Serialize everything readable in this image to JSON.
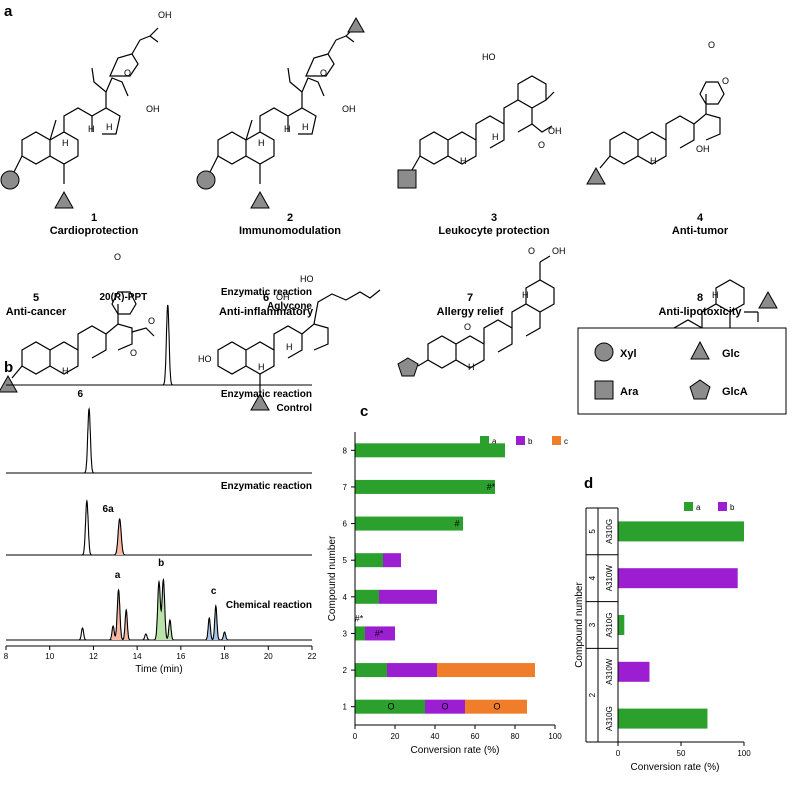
{
  "panels": {
    "a": "a",
    "b": "b",
    "c": "c",
    "d": "d"
  },
  "compounds": [
    {
      "num": "1",
      "label": "Cardioprotection"
    },
    {
      "num": "2",
      "label": "Immunomodulation"
    },
    {
      "num": "3",
      "label": "Leukocyte protection"
    },
    {
      "num": "4",
      "label": "Anti-tumor"
    },
    {
      "num": "5",
      "label": "Anti-cancer"
    },
    {
      "num": "6",
      "label": "Anti-inflammatory"
    },
    {
      "num": "7",
      "label": "Allergy relief"
    },
    {
      "num": "8",
      "label": "Anti-lipotoxicity"
    }
  ],
  "sugar_legend": [
    {
      "shape": "circle",
      "name": "Xyl"
    },
    {
      "shape": "triangle",
      "name": "Glc"
    },
    {
      "shape": "square",
      "name": "Ara"
    },
    {
      "shape": "pentagon",
      "name": "GlcA"
    }
  ],
  "chem_text": {
    "oh": "OH",
    "ho": "HO",
    "h": "H",
    "o": "O"
  },
  "chromatograms": {
    "traces": [
      {
        "left_label": "20(R)-PPT",
        "title_line1": "Enzymatic reaction",
        "title_line2": "Aglycone",
        "peak_labels": []
      },
      {
        "left_label": "6",
        "title_line1": "Enzymatic reaction",
        "title_line2": "Control",
        "peak_labels": []
      },
      {
        "left_label": "6a",
        "title_line1": "Enzymatic reaction",
        "title_line2": "",
        "peak_labels": []
      },
      {
        "left_label": "",
        "title_line1": "Chemical reaction",
        "title_line2": "",
        "peak_labels": [
          "a",
          "b",
          "c"
        ]
      }
    ],
    "x_ticks": [
      "8",
      "10",
      "12",
      "14",
      "16",
      "18",
      "20",
      "22"
    ],
    "xlabel": "Time (min)"
  },
  "chart_data": [
    {
      "type": "bar",
      "orientation": "horizontal",
      "stacked": true,
      "categories": [
        "1",
        "2",
        "3",
        "4",
        "5",
        "6",
        "7",
        "8"
      ],
      "series": [
        {
          "name": "a",
          "color": "#2ca02c",
          "values": [
            35,
            16,
            5,
            12,
            14,
            54,
            70,
            75
          ]
        },
        {
          "name": "b",
          "color": "#9b1fd1",
          "values": [
            20,
            25,
            15,
            29,
            9,
            0,
            0,
            0
          ]
        },
        {
          "name": "c",
          "color": "#f07d2a",
          "values": [
            31,
            49,
            0,
            0,
            0,
            0,
            0,
            0
          ]
        }
      ],
      "annotations": [
        {
          "category": "1",
          "text": "O",
          "x": 18
        },
        {
          "category": "1",
          "text": "O",
          "x": 45
        },
        {
          "category": "1",
          "text": "O",
          "x": 71
        },
        {
          "category": "3",
          "text": "#*",
          "x": 12
        },
        {
          "category": "3",
          "text": "#*",
          "x": 2
        },
        {
          "category": "6",
          "text": "#",
          "x": 51
        },
        {
          "category": "7",
          "text": "#*",
          "x": 68
        }
      ],
      "xlabel": "Conversion rate (%)",
      "ylabel": "Compound number",
      "xlim": [
        0,
        100
      ],
      "x_ticks": [
        "0",
        "20",
        "40",
        "60",
        "80",
        "100"
      ],
      "legend": "top-right"
    },
    {
      "type": "bar",
      "orientation": "horizontal",
      "stacked": false,
      "categories": [
        "2 A310G",
        "2 A310W",
        "3 A310G",
        "4 A310W",
        "5 A310G"
      ],
      "group_labels": [
        {
          "num": "2",
          "variants": [
            "A310G",
            "A310W"
          ]
        },
        {
          "num": "3",
          "variants": [
            "A310G"
          ]
        },
        {
          "num": "4",
          "variants": [
            "A310W"
          ]
        },
        {
          "num": "5",
          "variants": [
            "A310G"
          ]
        }
      ],
      "series": [
        {
          "name": "a",
          "color": "#2ca02c",
          "values": [
            71,
            0,
            5,
            0,
            100
          ]
        },
        {
          "name": "b",
          "color": "#9b1fd1",
          "values": [
            0,
            25,
            0,
            95,
            0
          ]
        }
      ],
      "xlabel": "Conversion rate (%)",
      "ylabel": "Compound number",
      "xlim": [
        0,
        100
      ],
      "x_ticks": [
        "0",
        "50",
        "100"
      ],
      "legend": "top-right"
    }
  ]
}
